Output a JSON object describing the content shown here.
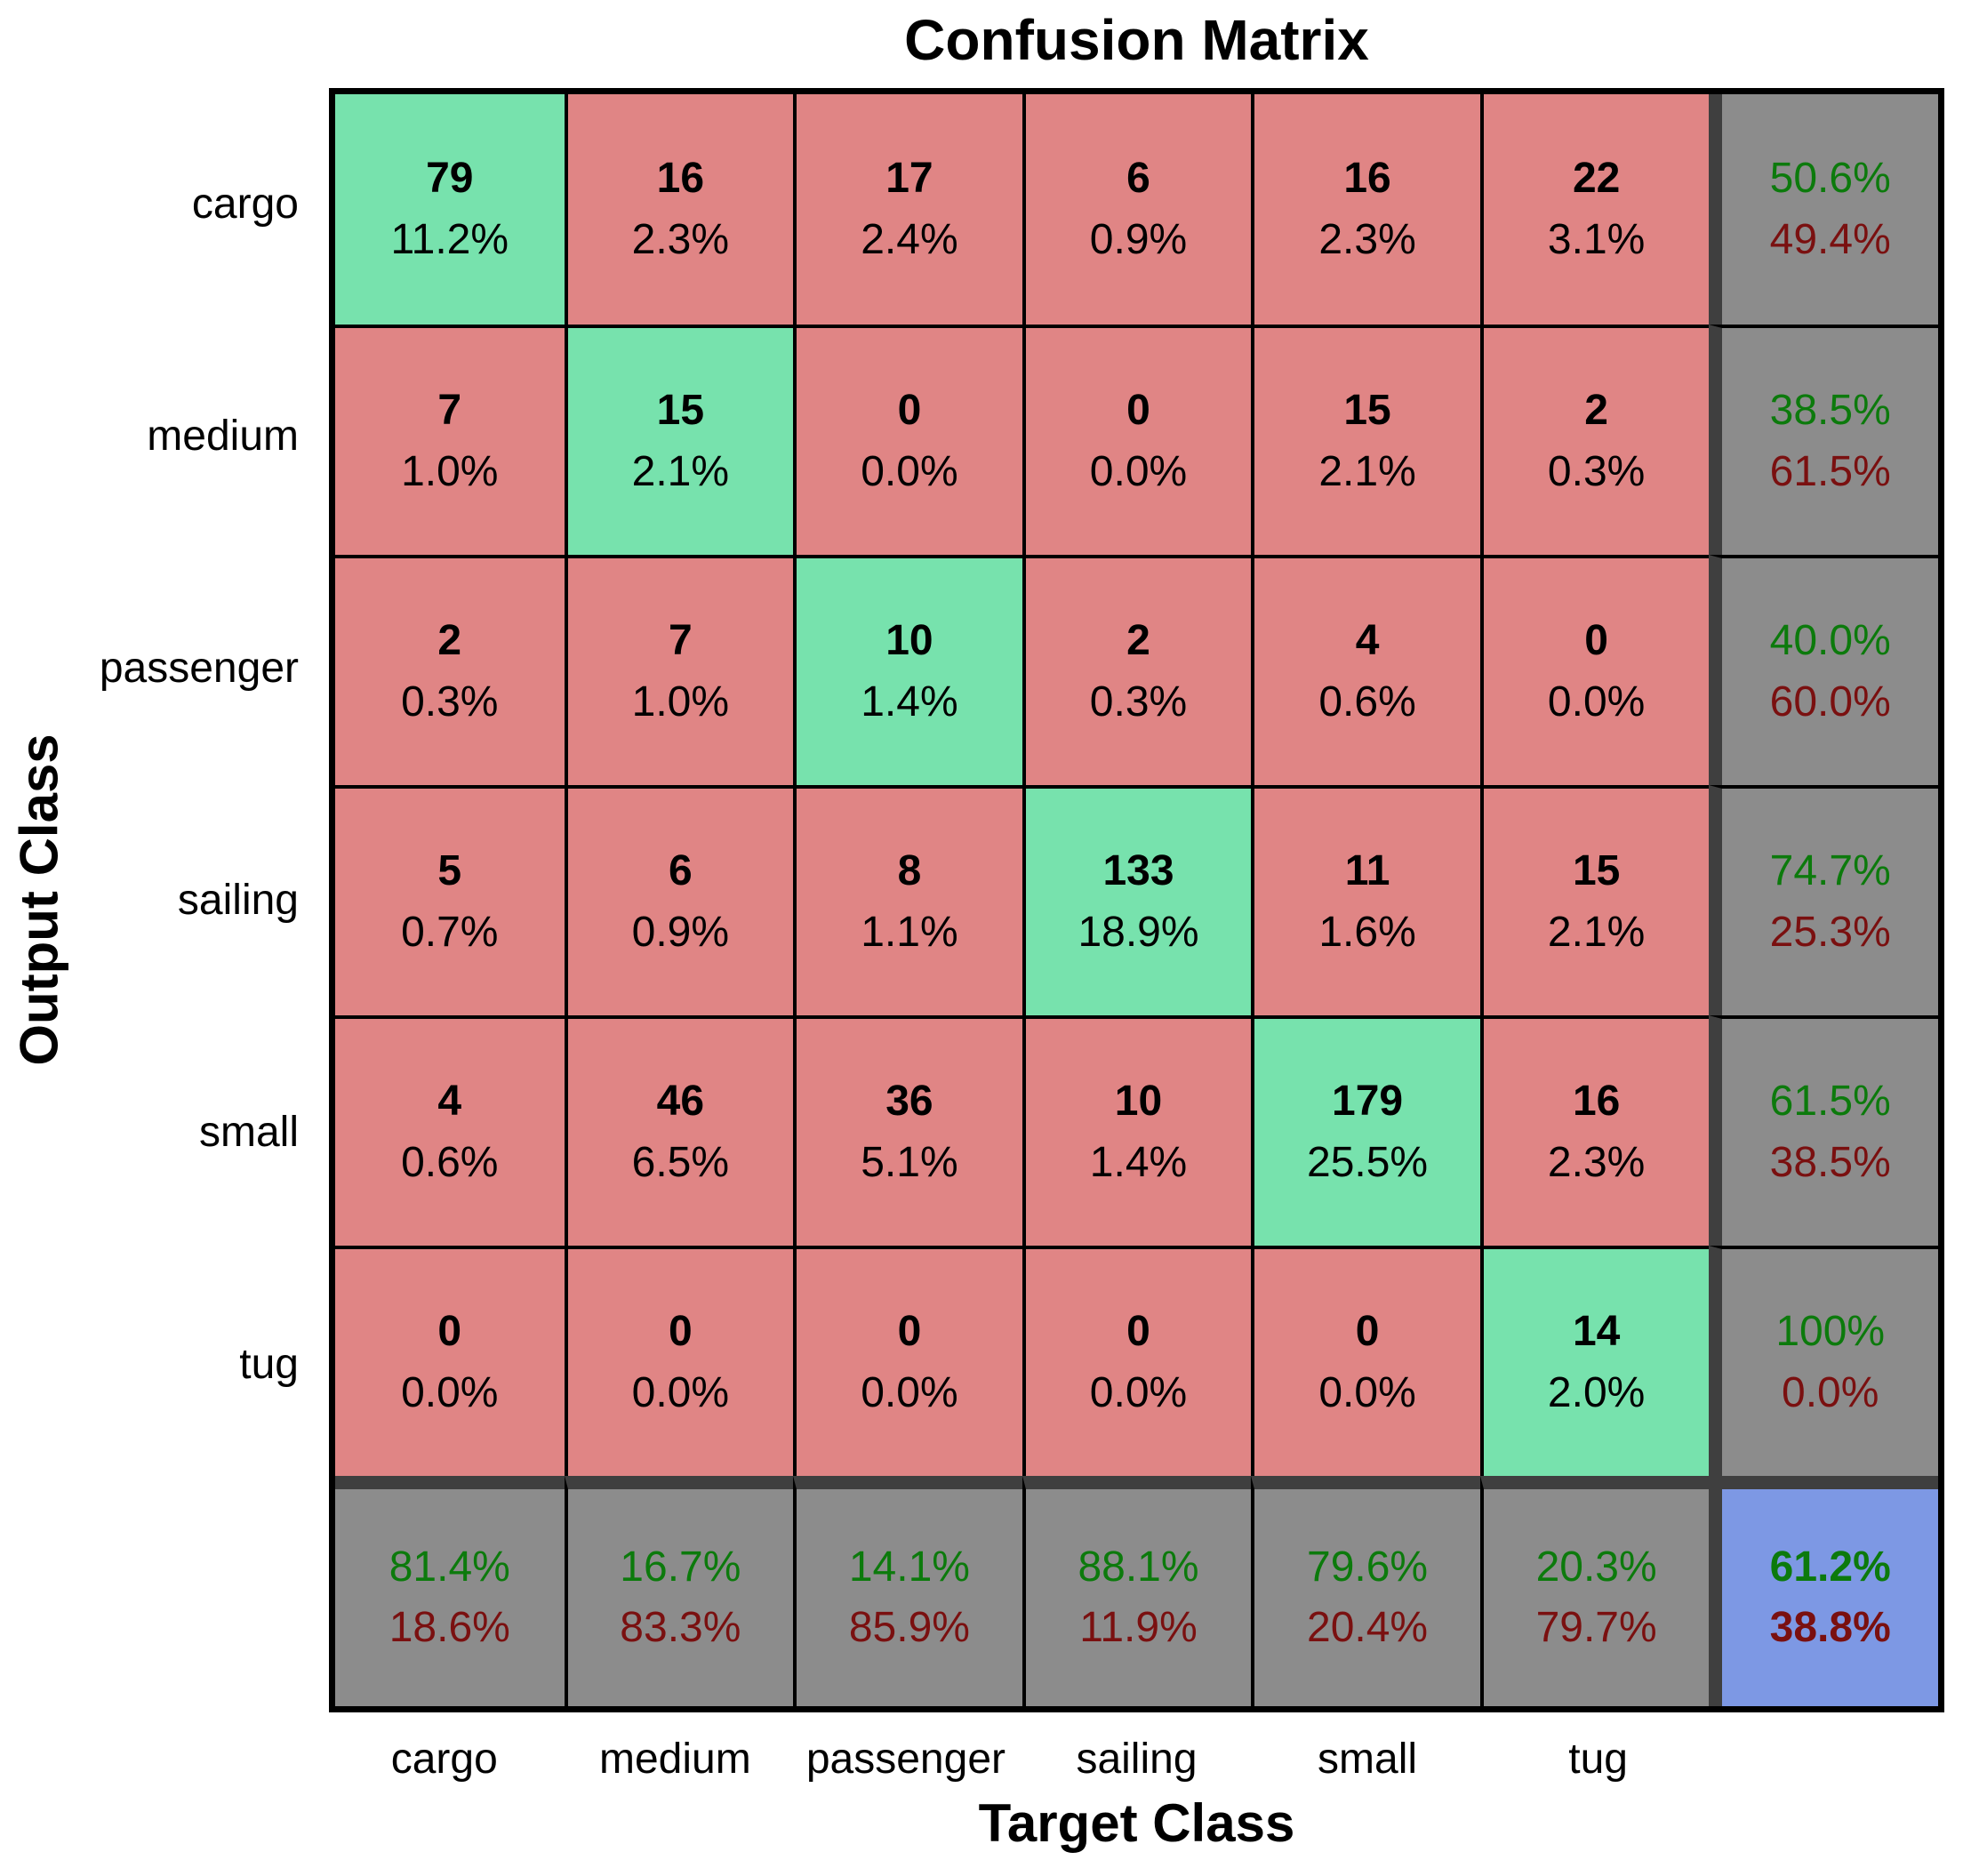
{
  "title": "Confusion Matrix",
  "x_axis_title": "Target Class",
  "y_axis_title": "Output Class",
  "chart_data": {
    "type": "heatmap",
    "title": "Confusion Matrix",
    "xlabel": "Target Class",
    "ylabel": "Output Class",
    "x_tick_labels": [
      "cargo",
      "medium",
      "passenger",
      "sailing",
      "small",
      "tug"
    ],
    "y_tick_labels": [
      "cargo",
      "medium",
      "passenger",
      "sailing",
      "small",
      "tug"
    ],
    "counts": [
      [
        79,
        16,
        17,
        6,
        16,
        22
      ],
      [
        7,
        15,
        0,
        0,
        15,
        2
      ],
      [
        2,
        7,
        10,
        2,
        4,
        0
      ],
      [
        5,
        6,
        8,
        133,
        11,
        15
      ],
      [
        4,
        46,
        36,
        10,
        179,
        16
      ],
      [
        0,
        0,
        0,
        0,
        0,
        14
      ]
    ],
    "percent_of_total": [
      [
        "11.2%",
        "2.3%",
        "2.4%",
        "0.9%",
        "2.3%",
        "3.1%"
      ],
      [
        "1.0%",
        "2.1%",
        "0.0%",
        "0.0%",
        "2.1%",
        "0.3%"
      ],
      [
        "0.3%",
        "1.0%",
        "1.4%",
        "0.3%",
        "0.6%",
        "0.0%"
      ],
      [
        "0.7%",
        "0.9%",
        "1.1%",
        "18.9%",
        "1.6%",
        "2.1%"
      ],
      [
        "0.6%",
        "6.5%",
        "5.1%",
        "1.4%",
        "25.5%",
        "2.3%"
      ],
      [
        "0.0%",
        "0.0%",
        "0.0%",
        "0.0%",
        "0.0%",
        "2.0%"
      ]
    ],
    "row_summary": [
      [
        "50.6%",
        "49.4%"
      ],
      [
        "38.5%",
        "61.5%"
      ],
      [
        "40.0%",
        "60.0%"
      ],
      [
        "74.7%",
        "25.3%"
      ],
      [
        "61.5%",
        "38.5%"
      ],
      [
        "100%",
        "0.0%"
      ]
    ],
    "col_summary": [
      [
        "81.4%",
        "18.6%"
      ],
      [
        "16.7%",
        "83.3%"
      ],
      [
        "14.1%",
        "85.9%"
      ],
      [
        "88.1%",
        "11.9%"
      ],
      [
        "79.6%",
        "20.4%"
      ],
      [
        "20.3%",
        "79.7%"
      ]
    ],
    "overall": [
      "61.2%",
      "38.8%"
    ],
    "colors": {
      "diagonal_green": "#77E2AD",
      "off_diagonal_red": "#E08585",
      "summary_gray": "#8C8C8C",
      "overall_blue": "#7D98E4",
      "positive_text_green": "#0C7A0C",
      "negative_text_red": "#7A1010",
      "separator_dark": "#3F3F3F",
      "grid_line": "#000000"
    },
    "legend_position": "none",
    "grid": true
  }
}
